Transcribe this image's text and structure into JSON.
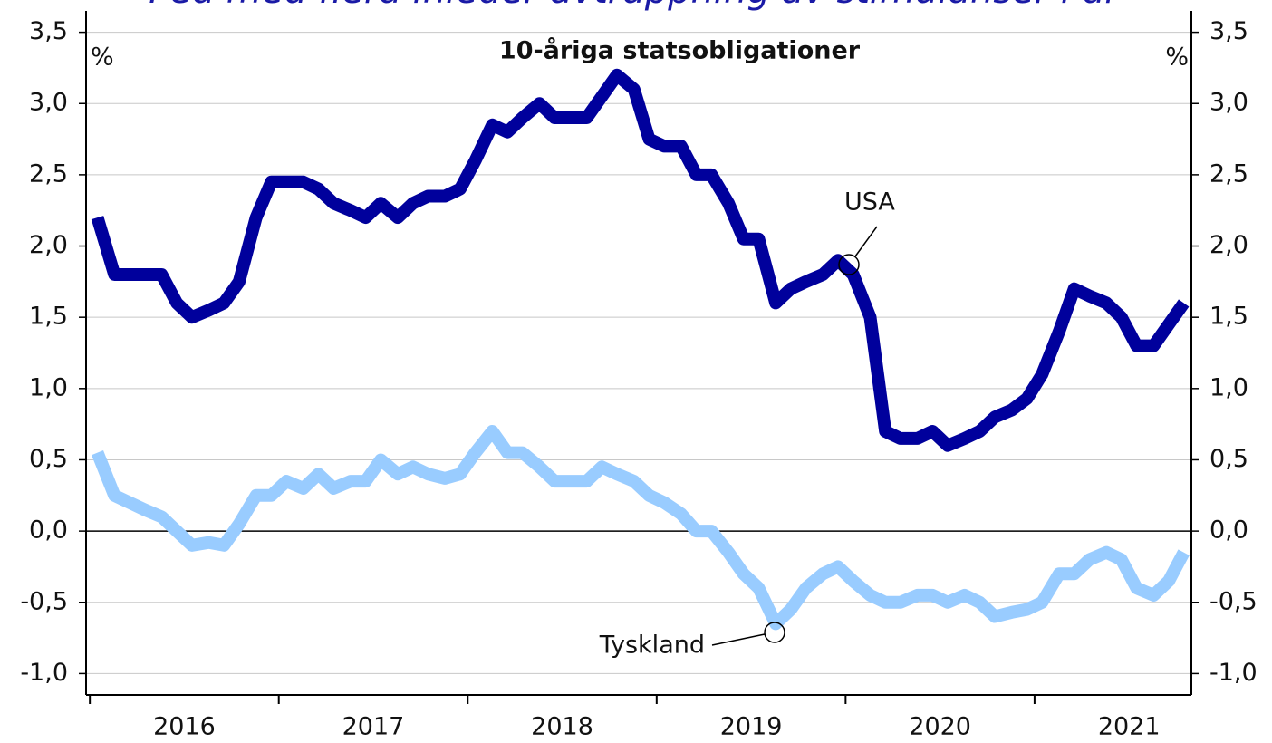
{
  "chart_data": {
    "type": "line",
    "title": "Fed med flera inleder avtrappning av stimulanser i år",
    "subtitle": "10-åriga statsobligationer",
    "y_unit": "%",
    "x": [
      2016.04,
      2016.13,
      2016.21,
      2016.29,
      2016.38,
      2016.46,
      2016.54,
      2016.63,
      2016.71,
      2016.79,
      2016.88,
      2016.96,
      2017.04,
      2017.13,
      2017.21,
      2017.29,
      2017.38,
      2017.46,
      2017.54,
      2017.63,
      2017.71,
      2017.79,
      2017.88,
      2017.96,
      2018.04,
      2018.13,
      2018.21,
      2018.29,
      2018.38,
      2018.46,
      2018.54,
      2018.63,
      2018.71,
      2018.79,
      2018.88,
      2018.96,
      2019.04,
      2019.13,
      2019.21,
      2019.29,
      2019.38,
      2019.46,
      2019.54,
      2019.63,
      2019.71,
      2019.79,
      2019.88,
      2019.96,
      2020.04,
      2020.13,
      2020.21,
      2020.29,
      2020.38,
      2020.46,
      2020.54,
      2020.63,
      2020.71,
      2020.79,
      2020.88,
      2020.96,
      2021.04,
      2021.13,
      2021.21,
      2021.29,
      2021.38,
      2021.46,
      2021.54,
      2021.63,
      2021.71,
      2021.79
    ],
    "series": [
      {
        "name": "USA",
        "color": "#00009c",
        "values": [
          2.2,
          1.8,
          1.8,
          1.8,
          1.8,
          1.6,
          1.5,
          1.55,
          1.6,
          1.75,
          2.2,
          2.45,
          2.45,
          2.45,
          2.4,
          2.3,
          2.25,
          2.2,
          2.3,
          2.2,
          2.3,
          2.35,
          2.35,
          2.4,
          2.6,
          2.85,
          2.8,
          2.9,
          3.0,
          2.9,
          2.9,
          2.9,
          3.05,
          3.2,
          3.1,
          2.75,
          2.7,
          2.7,
          2.5,
          2.5,
          2.3,
          2.05,
          2.05,
          1.6,
          1.7,
          1.75,
          1.8,
          1.9,
          1.8,
          1.5,
          0.7,
          0.65,
          0.65,
          0.7,
          0.6,
          0.65,
          0.7,
          0.8,
          0.85,
          0.93,
          1.1,
          1.4,
          1.7,
          1.65,
          1.6,
          1.5,
          1.3,
          1.3,
          1.45,
          1.6
        ]
      },
      {
        "name": "Tyskland",
        "color": "#99ccff",
        "values": [
          0.55,
          0.25,
          0.2,
          0.15,
          0.1,
          0.0,
          -0.1,
          -0.08,
          -0.1,
          0.05,
          0.25,
          0.25,
          0.35,
          0.3,
          0.4,
          0.3,
          0.35,
          0.35,
          0.5,
          0.4,
          0.45,
          0.4,
          0.37,
          0.4,
          0.55,
          0.7,
          0.55,
          0.55,
          0.45,
          0.35,
          0.35,
          0.35,
          0.45,
          0.4,
          0.35,
          0.25,
          0.2,
          0.12,
          0.0,
          0.0,
          -0.15,
          -0.3,
          -0.4,
          -0.65,
          -0.55,
          -0.4,
          -0.3,
          -0.25,
          -0.35,
          -0.45,
          -0.5,
          -0.5,
          -0.45,
          -0.45,
          -0.5,
          -0.45,
          -0.5,
          -0.6,
          -0.57,
          -0.55,
          -0.5,
          -0.3,
          -0.3,
          -0.2,
          -0.15,
          -0.2,
          -0.4,
          -0.45,
          -0.35,
          -0.15
        ]
      }
    ],
    "xlim": [
      2015.98,
      2021.83
    ],
    "xticks": [
      2016,
      2017,
      2018,
      2019,
      2020,
      2021
    ],
    "ylim": [
      -1.15,
      3.65
    ],
    "yticks": [
      {
        "value": -1.0,
        "label": "-1,0"
      },
      {
        "value": -0.5,
        "label": "-0,5"
      },
      {
        "value": 0,
        "label": "0,0"
      },
      {
        "value": 0.5,
        "label": "0,5"
      },
      {
        "value": 1.0,
        "label": "1,0"
      },
      {
        "value": 1.5,
        "label": "1,5"
      },
      {
        "value": 2.0,
        "label": "2,0"
      },
      {
        "value": 2.5,
        "label": "2,5"
      },
      {
        "value": 3.0,
        "label": "3,0"
      },
      {
        "value": 3.5,
        "label": "3,5"
      }
    ],
    "y2lim": [
      -1.15,
      3.65
    ],
    "y2ticks": [
      {
        "value": -1.0,
        "label": "-1,0"
      },
      {
        "value": -0.5,
        "label": "-0,5"
      },
      {
        "value": 0,
        "label": "0,0"
      },
      {
        "value": 0.5,
        "label": "0,5"
      },
      {
        "value": 1.0,
        "label": "1,0"
      },
      {
        "value": 1.5,
        "label": "1,5"
      },
      {
        "value": 2.0,
        "label": "2,0"
      },
      {
        "value": 2.5,
        "label": "2,5"
      },
      {
        "value": 3.0,
        "label": "3,0"
      },
      {
        "value": 3.5,
        "label": "3,5"
      }
    ],
    "grid": true
  }
}
